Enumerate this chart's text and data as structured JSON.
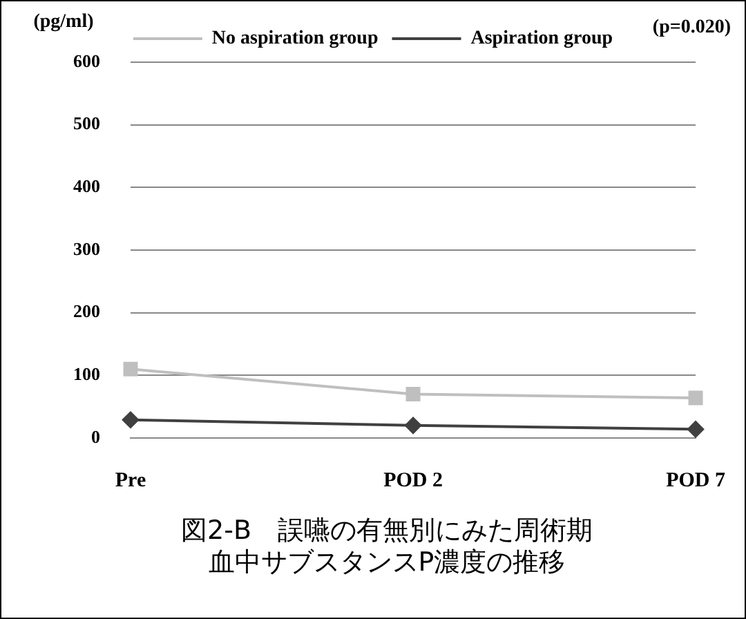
{
  "chart_data": {
    "type": "line",
    "title": "図2-B　誤嚥の有無別にみた周術期血中サブスタンスP濃度の推移",
    "ylabel": "(pg/ml)",
    "annotations": [
      "(p=0.020)"
    ],
    "categories": [
      "Pre",
      "POD 2",
      "POD 7"
    ],
    "series": [
      {
        "name": "No aspiration group",
        "color": "#bfbfbf",
        "marker": "square",
        "values": [
          110,
          70,
          64
        ]
      },
      {
        "name": "Aspiration group",
        "color": "#404040",
        "marker": "diamond",
        "values": [
          29,
          20,
          14
        ]
      }
    ],
    "ylim": [
      0,
      600
    ],
    "yticks": [
      0,
      100,
      200,
      300,
      400,
      500,
      600
    ],
    "grid": "y",
    "legend": "top"
  }
}
